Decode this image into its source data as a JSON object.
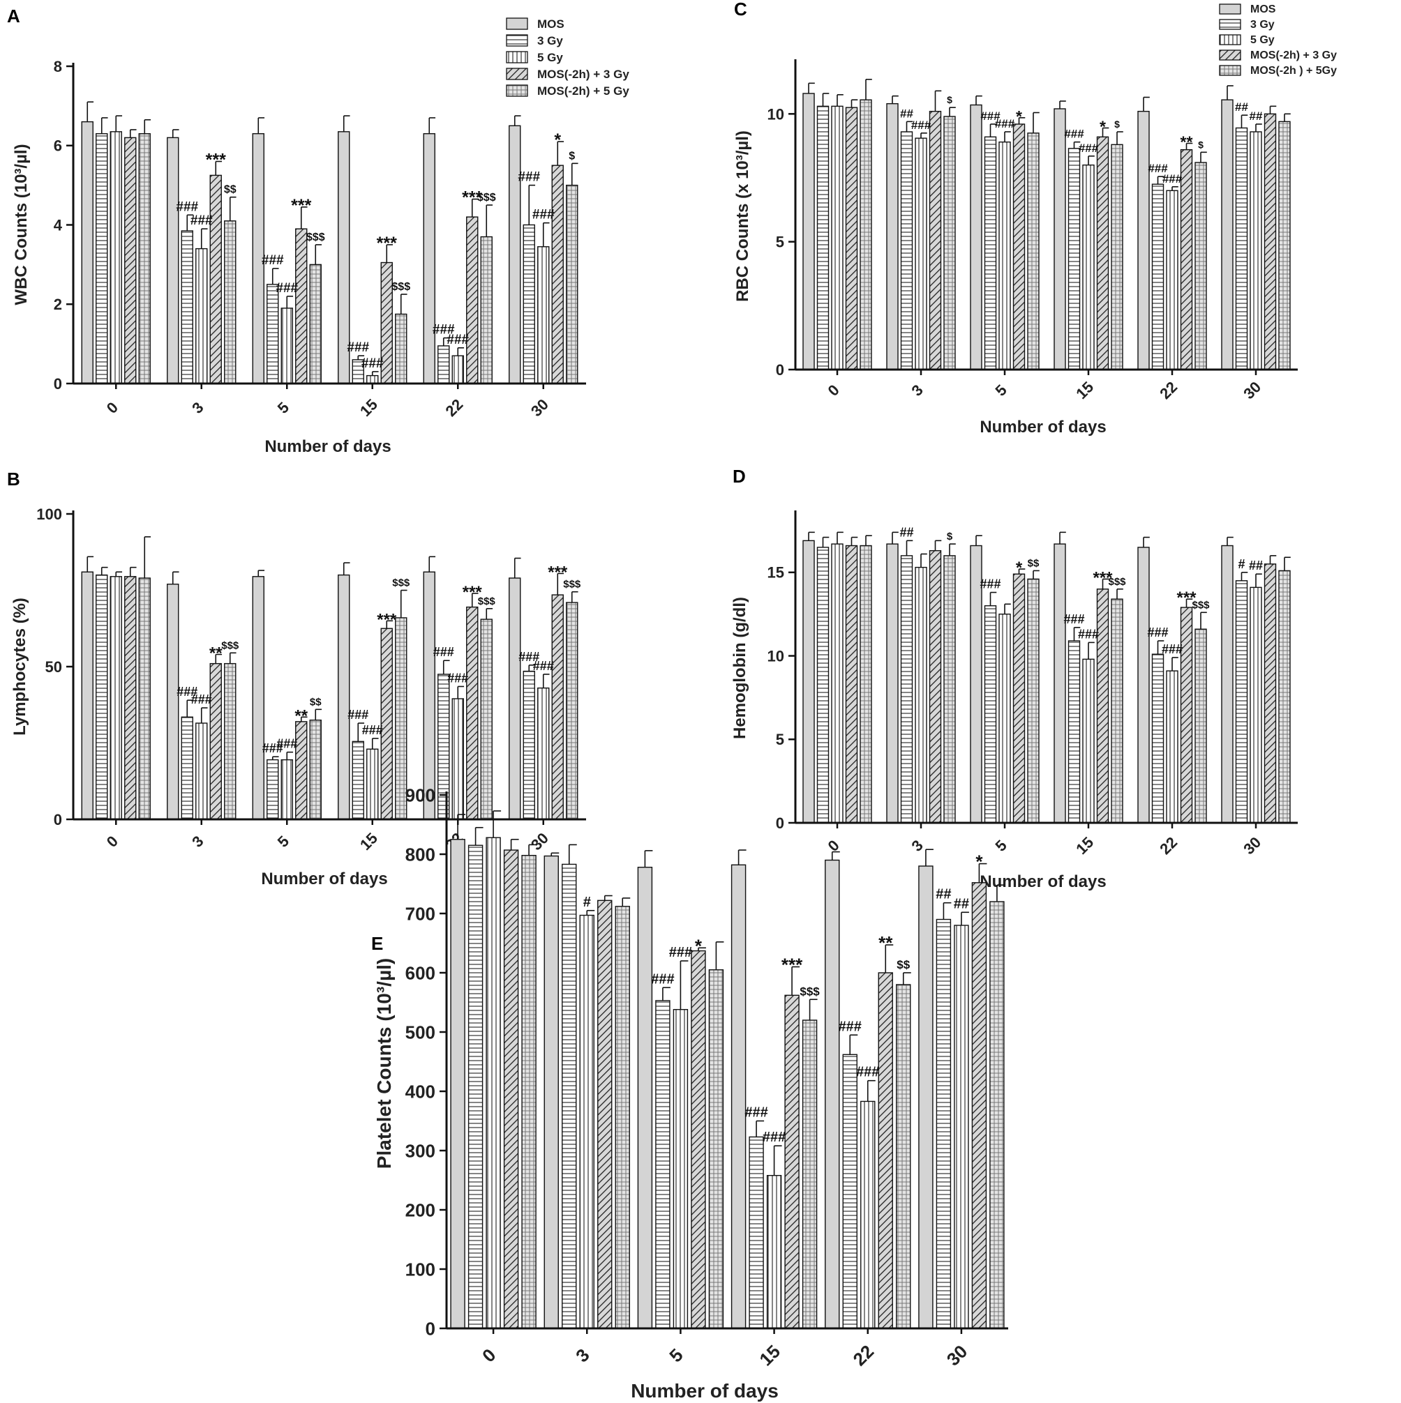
{
  "figure": {
    "groups": [
      "MOS",
      "3 Gy",
      "5 Gy",
      "MOS(-2h) + 3 Gy",
      "MOS(-2h) + 5 Gy"
    ],
    "group_patterns": [
      "solid",
      "hlines",
      "vlines",
      "diag",
      "grid"
    ]
  },
  "chart_data": [
    {
      "panel": "A",
      "type": "bar",
      "title": "",
      "xlabel": "Number of days",
      "ylabel": "WBC Counts (10³/µl)",
      "categories": [
        "0",
        "3",
        "5",
        "15",
        "22",
        "30"
      ],
      "ylim": [
        0,
        8
      ],
      "yticks": [
        "0",
        "2",
        "4",
        "6",
        "8"
      ],
      "legend": {
        "position": "top-right",
        "labels": [
          "MOS",
          "3 Gy",
          "5 Gy",
          "MOS(-2h) + 3 Gy",
          "MOS(-2h) + 5 Gy"
        ]
      },
      "series": [
        {
          "name": "MOS",
          "values": [
            6.6,
            6.2,
            6.3,
            6.35,
            6.3,
            6.5
          ],
          "errors": [
            0.5,
            0.2,
            0.4,
            0.4,
            0.4,
            0.25
          ]
        },
        {
          "name": "3 Gy",
          "values": [
            6.3,
            3.85,
            2.5,
            0.6,
            0.95,
            4.0
          ],
          "errors": [
            0.4,
            0.4,
            0.4,
            0.1,
            0.2,
            1.0
          ]
        },
        {
          "name": "5 Gy",
          "values": [
            6.35,
            3.4,
            1.9,
            0.2,
            0.7,
            3.45
          ],
          "errors": [
            0.4,
            0.5,
            0.3,
            0.1,
            0.2,
            0.6
          ]
        },
        {
          "name": "MOS(-2h) + 3 Gy",
          "values": [
            6.2,
            5.25,
            3.9,
            3.05,
            4.2,
            5.5
          ],
          "errors": [
            0.2,
            0.35,
            0.55,
            0.45,
            0.45,
            0.6
          ]
        },
        {
          "name": "MOS(-2h) + 5 Gy",
          "values": [
            6.3,
            4.1,
            3.0,
            1.75,
            3.7,
            5.0
          ],
          "errors": [
            0.35,
            0.6,
            0.5,
            0.5,
            0.8,
            0.55
          ]
        }
      ],
      "annotations": [
        {
          "category": "3",
          "series": 1,
          "text": "###"
        },
        {
          "category": "3",
          "series": 2,
          "text": "###"
        },
        {
          "category": "3",
          "series": 3,
          "text": "***"
        },
        {
          "category": "3",
          "series": 4,
          "text": "$$"
        },
        {
          "category": "5",
          "series": 1,
          "text": "###"
        },
        {
          "category": "5",
          "series": 2,
          "text": "###"
        },
        {
          "category": "5",
          "series": 3,
          "text": "***"
        },
        {
          "category": "5",
          "series": 4,
          "text": "$$$"
        },
        {
          "category": "15",
          "series": 1,
          "text": "###"
        },
        {
          "category": "15",
          "series": 2,
          "text": "###"
        },
        {
          "category": "15",
          "series": 3,
          "text": "***"
        },
        {
          "category": "15",
          "series": 4,
          "text": "$$$"
        },
        {
          "category": "22",
          "series": 1,
          "text": "###"
        },
        {
          "category": "22",
          "series": 2,
          "text": "###"
        },
        {
          "category": "22",
          "series": 3,
          "text": "***"
        },
        {
          "category": "22",
          "series": 4,
          "text": "$$$"
        },
        {
          "category": "30",
          "series": 1,
          "text": "###"
        },
        {
          "category": "30",
          "series": 2,
          "text": "###"
        },
        {
          "category": "30",
          "series": 3,
          "text": "*"
        },
        {
          "category": "30",
          "series": 4,
          "text": "$"
        }
      ]
    },
    {
      "panel": "C",
      "type": "bar",
      "title": "",
      "xlabel": "Number of days",
      "ylabel": "RBC Counts (x 10³/µl)",
      "categories": [
        "0",
        "3",
        "5",
        "15",
        "22",
        "30"
      ],
      "ylim": [
        0,
        12
      ],
      "yticks": [
        "0",
        "5",
        "10"
      ],
      "legend": {
        "position": "top-right",
        "labels": [
          "MOS",
          "3 Gy",
          "5 Gy",
          "MOS(-2h) + 3 Gy",
          "MOS(-2h ) + 5Gy"
        ]
      },
      "series": [
        {
          "name": "MOS",
          "values": [
            10.8,
            10.4,
            10.35,
            10.2,
            10.1,
            10.55
          ],
          "errors": [
            0.4,
            0.3,
            0.35,
            0.3,
            0.55,
            0.55
          ]
        },
        {
          "name": "3 Gy",
          "values": [
            10.3,
            9.3,
            9.1,
            8.65,
            7.25,
            9.45
          ],
          "errors": [
            0.5,
            0.4,
            0.5,
            0.25,
            0.3,
            0.5
          ]
        },
        {
          "name": "5 Gy",
          "values": [
            10.3,
            9.05,
            8.9,
            8.0,
            7.0,
            9.3
          ],
          "errors": [
            0.45,
            0.2,
            0.4,
            0.35,
            0.15,
            0.3
          ]
        },
        {
          "name": "MOS(-2h) + 3 Gy",
          "values": [
            10.25,
            10.1,
            9.6,
            9.1,
            8.6,
            10.0
          ],
          "errors": [
            0.3,
            0.8,
            0.25,
            0.35,
            0.25,
            0.3
          ]
        },
        {
          "name": "MOS(-2h) + 5 Gy",
          "values": [
            10.55,
            9.9,
            9.25,
            8.8,
            8.1,
            9.7
          ],
          "errors": [
            0.8,
            0.35,
            0.8,
            0.5,
            0.4,
            0.3
          ]
        }
      ],
      "annotations": [
        {
          "category": "3",
          "series": 1,
          "text": "##"
        },
        {
          "category": "3",
          "series": 2,
          "text": "###"
        },
        {
          "category": "3",
          "series": 4,
          "text": "$"
        },
        {
          "category": "5",
          "series": 1,
          "text": "###"
        },
        {
          "category": "5",
          "series": 2,
          "text": "###"
        },
        {
          "category": "5",
          "series": 3,
          "text": "*"
        },
        {
          "category": "15",
          "series": 1,
          "text": "###"
        },
        {
          "category": "15",
          "series": 2,
          "text": "###"
        },
        {
          "category": "15",
          "series": 3,
          "text": "*"
        },
        {
          "category": "15",
          "series": 4,
          "text": "$"
        },
        {
          "category": "22",
          "series": 1,
          "text": "###"
        },
        {
          "category": "22",
          "series": 2,
          "text": "###"
        },
        {
          "category": "22",
          "series": 3,
          "text": "**"
        },
        {
          "category": "22",
          "series": 4,
          "text": "$"
        },
        {
          "category": "30",
          "series": 1,
          "text": "##"
        },
        {
          "category": "30",
          "series": 2,
          "text": "##"
        }
      ]
    },
    {
      "panel": "B",
      "type": "bar",
      "title": "",
      "xlabel": "Number of days",
      "ylabel": "Lymphocytes (%)",
      "categories": [
        "0",
        "3",
        "5",
        "15",
        "22",
        "30"
      ],
      "ylim": [
        0,
        100
      ],
      "yticks": [
        "0",
        "50",
        "100"
      ],
      "legend": null,
      "series": [
        {
          "name": "MOS",
          "values": [
            81,
            77,
            79.5,
            80,
            81,
            79
          ],
          "errors": [
            5,
            4,
            2,
            4,
            5,
            6.5
          ]
        },
        {
          "name": "3 Gy",
          "values": [
            80,
            33.5,
            19.5,
            25.5,
            47.5,
            48.5
          ],
          "errors": [
            2.5,
            5.5,
            1,
            6,
            4.5,
            2
          ]
        },
        {
          "name": "5 Gy",
          "values": [
            79.5,
            31.5,
            19.5,
            23,
            39.5,
            43
          ],
          "errors": [
            1.5,
            5,
            2.5,
            3.5,
            4,
            4.5
          ]
        },
        {
          "name": "MOS(-2h) + 3 Gy",
          "values": [
            79.5,
            51,
            32,
            62.5,
            69.5,
            73.5
          ],
          "errors": [
            3,
            3,
            1.5,
            2.5,
            4.5,
            7
          ]
        },
        {
          "name": "MOS(-2h) + 5 Gy",
          "values": [
            79,
            51,
            32.5,
            66,
            65.5,
            71
          ],
          "errors": [
            13.5,
            3.5,
            3.5,
            9,
            3.5,
            3.5
          ]
        }
      ],
      "annotations": [
        {
          "category": "3",
          "series": 1,
          "text": "###"
        },
        {
          "category": "3",
          "series": 2,
          "text": "###"
        },
        {
          "category": "3",
          "series": 3,
          "text": "**"
        },
        {
          "category": "3",
          "series": 4,
          "text": "$$$"
        },
        {
          "category": "5",
          "series": 1,
          "text": "###"
        },
        {
          "category": "5",
          "series": 2,
          "text": "###"
        },
        {
          "category": "5",
          "series": 3,
          "text": "**"
        },
        {
          "category": "5",
          "series": 4,
          "text": "$$"
        },
        {
          "category": "15",
          "series": 1,
          "text": "###"
        },
        {
          "category": "15",
          "series": 2,
          "text": "###"
        },
        {
          "category": "15",
          "series": 3,
          "text": "***"
        },
        {
          "category": "15",
          "series": 4,
          "text": "$$$"
        },
        {
          "category": "22",
          "series": 1,
          "text": "###"
        },
        {
          "category": "22",
          "series": 2,
          "text": "###"
        },
        {
          "category": "22",
          "series": 3,
          "text": "***"
        },
        {
          "category": "22",
          "series": 4,
          "text": "$$$"
        },
        {
          "category": "30",
          "series": 1,
          "text": "###"
        },
        {
          "category": "30",
          "series": 2,
          "text": "###"
        },
        {
          "category": "30",
          "series": 3,
          "text": "***"
        },
        {
          "category": "30",
          "series": 4,
          "text": "$$$"
        }
      ]
    },
    {
      "panel": "D",
      "type": "bar",
      "title": "",
      "xlabel": "Number of days",
      "ylabel": "Hemoglobin (g/dl)",
      "categories": [
        "0",
        "3",
        "5",
        "15",
        "22",
        "30"
      ],
      "ylim": [
        0,
        18.5
      ],
      "yticks": [
        "0",
        "5",
        "10",
        "15"
      ],
      "legend": null,
      "series": [
        {
          "name": "MOS",
          "values": [
            16.9,
            16.7,
            16.6,
            16.7,
            16.5,
            16.6
          ],
          "errors": [
            0.5,
            0.7,
            0.6,
            0.7,
            0.6,
            0.5
          ]
        },
        {
          "name": "3 Gy",
          "values": [
            16.5,
            16.0,
            13.0,
            10.9,
            10.1,
            14.5
          ],
          "errors": [
            0.6,
            0.9,
            0.8,
            0.8,
            0.8,
            0.5
          ]
        },
        {
          "name": "5 Gy",
          "values": [
            16.7,
            15.3,
            12.5,
            9.8,
            9.1,
            14.1
          ],
          "errors": [
            0.7,
            0.8,
            0.6,
            1.0,
            0.8,
            0.8
          ]
        },
        {
          "name": "MOS(-2h) + 3 Gy",
          "values": [
            16.6,
            16.3,
            14.9,
            14.0,
            12.9,
            15.5
          ],
          "errors": [
            0.5,
            0.6,
            0.3,
            0.6,
            0.5,
            0.5
          ]
        },
        {
          "name": "MOS(-2h) + 5 Gy",
          "values": [
            16.6,
            16.0,
            14.6,
            13.4,
            11.6,
            15.1
          ],
          "errors": [
            0.6,
            0.7,
            0.5,
            0.6,
            1.0,
            0.8
          ]
        }
      ],
      "annotations": [
        {
          "category": "3",
          "series": 1,
          "text": "##"
        },
        {
          "category": "3",
          "series": 4,
          "text": "$"
        },
        {
          "category": "5",
          "series": 1,
          "text": "###"
        },
        {
          "category": "5",
          "series": 3,
          "text": "*"
        },
        {
          "category": "5",
          "series": 4,
          "text": "$$"
        },
        {
          "category": "15",
          "series": 1,
          "text": "###"
        },
        {
          "category": "15",
          "series": 2,
          "text": "###"
        },
        {
          "category": "15",
          "series": 3,
          "text": "***"
        },
        {
          "category": "15",
          "series": 4,
          "text": "$$$"
        },
        {
          "category": "22",
          "series": 1,
          "text": "###"
        },
        {
          "category": "22",
          "series": 2,
          "text": "###"
        },
        {
          "category": "22",
          "series": 3,
          "text": "***"
        },
        {
          "category": "22",
          "series": 4,
          "text": "$$$"
        },
        {
          "category": "30",
          "series": 1,
          "text": "#"
        },
        {
          "category": "30",
          "series": 2,
          "text": "##"
        }
      ]
    },
    {
      "panel": "E",
      "type": "bar",
      "title": "",
      "xlabel": "Number of days",
      "ylabel": "Platelet Counts (10³/µl)",
      "categories": [
        "0",
        "3",
        "5",
        "15",
        "22",
        "30"
      ],
      "ylim": [
        0,
        900
      ],
      "yticks": [
        "0",
        "100",
        "200",
        "300",
        "400",
        "500",
        "600",
        "700",
        "800",
        "900"
      ],
      "legend": null,
      "series": [
        {
          "name": "MOS",
          "values": [
            825,
            797,
            778,
            782,
            790,
            780
          ],
          "errors": [
            42,
            5,
            28,
            25,
            14,
            28
          ]
        },
        {
          "name": "3 Gy",
          "values": [
            815,
            783,
            553,
            323,
            462,
            690
          ],
          "errors": [
            30,
            33,
            22,
            27,
            33,
            28
          ]
        },
        {
          "name": "5 Gy",
          "values": [
            828,
            697,
            538,
            258,
            383,
            680
          ],
          "errors": [
            45,
            8,
            82,
            50,
            35,
            22
          ]
        },
        {
          "name": "MOS(-2h) + 3 Gy",
          "values": [
            807,
            722,
            637,
            562,
            600,
            752
          ],
          "errors": [
            18,
            8,
            5,
            48,
            47,
            32
          ]
        },
        {
          "name": "MOS(-2h) + 5 Gy",
          "values": [
            798,
            712,
            605,
            520,
            580,
            720
          ],
          "errors": [
            18,
            14,
            47,
            35,
            20,
            28
          ]
        }
      ],
      "annotations": [
        {
          "category": "3",
          "series": 2,
          "text": "#"
        },
        {
          "category": "5",
          "series": 1,
          "text": "###"
        },
        {
          "category": "5",
          "series": 2,
          "text": "###"
        },
        {
          "category": "5",
          "series": 3,
          "text": "*"
        },
        {
          "category": "15",
          "series": 1,
          "text": "###"
        },
        {
          "category": "15",
          "series": 2,
          "text": "###"
        },
        {
          "category": "15",
          "series": 3,
          "text": "***"
        },
        {
          "category": "15",
          "series": 4,
          "text": "$$$"
        },
        {
          "category": "22",
          "series": 1,
          "text": "###"
        },
        {
          "category": "22",
          "series": 2,
          "text": "###"
        },
        {
          "category": "22",
          "series": 3,
          "text": "**"
        },
        {
          "category": "22",
          "series": 4,
          "text": "$$"
        },
        {
          "category": "30",
          "series": 1,
          "text": "##"
        },
        {
          "category": "30",
          "series": 2,
          "text": "##"
        },
        {
          "category": "30",
          "series": 3,
          "text": "*"
        }
      ]
    }
  ]
}
